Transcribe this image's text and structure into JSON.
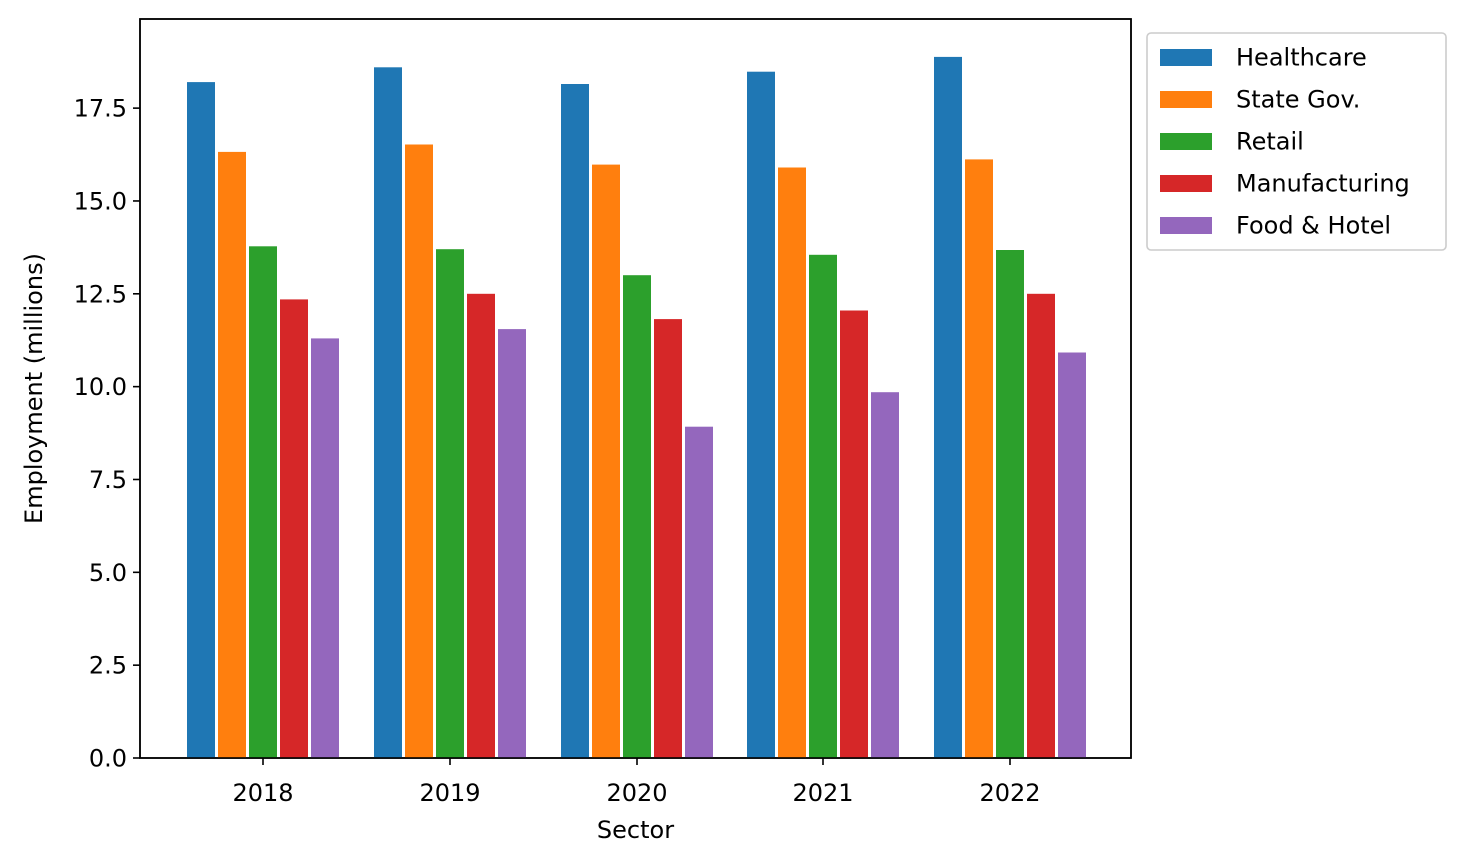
{
  "chart_data": {
    "type": "bar",
    "title": "",
    "xlabel": "Sector",
    "ylabel": "Employment (millions)",
    "categories": [
      "2018",
      "2019",
      "2020",
      "2021",
      "2022"
    ],
    "ylim": [
      0,
      19.9
    ],
    "yticks": [
      0.0,
      2.5,
      5.0,
      7.5,
      10.0,
      12.5,
      15.0,
      17.5
    ],
    "ytick_labels": [
      "0.0",
      "2.5",
      "5.0",
      "7.5",
      "10.0",
      "12.5",
      "15.0",
      "17.5"
    ],
    "grid": false,
    "legend_position": "outside upper right",
    "series": [
      {
        "name": "Healthcare",
        "color": "#1f77b4",
        "values": [
          18.2,
          18.6,
          18.15,
          18.48,
          18.88
        ]
      },
      {
        "name": "State Gov.",
        "color": "#ff7f0e",
        "values": [
          16.32,
          16.52,
          15.98,
          15.9,
          16.12
        ]
      },
      {
        "name": "Retail",
        "color": "#2ca02c",
        "values": [
          13.78,
          13.7,
          13.0,
          13.55,
          13.68
        ]
      },
      {
        "name": "Manufacturing",
        "color": "#d62728",
        "values": [
          12.35,
          12.5,
          11.82,
          12.05,
          12.5
        ]
      },
      {
        "name": "Food & Hotel",
        "color": "#9467bd",
        "values": [
          11.3,
          11.55,
          8.92,
          9.85,
          10.92
        ]
      }
    ]
  }
}
